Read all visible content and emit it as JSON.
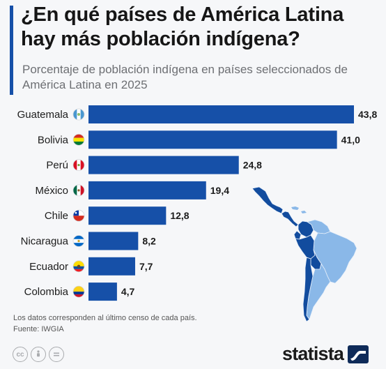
{
  "title": "¿En qué países de América Latina hay más población indígena?",
  "subtitle": "Porcentaje de población indígena en países seleccionados de América Latina en 2025",
  "footnote": "Los datos corresponden al último censo de cada país.",
  "source": "Fuente: IWGIA",
  "brand": "statista",
  "license_icons": [
    "cc-icon",
    "attribution-icon",
    "no-derivatives-icon"
  ],
  "colors": {
    "bar": "#1650a8",
    "accent": "#1650a8",
    "map_highlight": "#124c9e",
    "map_other": "#8ab8e8"
  },
  "chart_data": {
    "type": "bar",
    "orientation": "horizontal",
    "categories": [
      "Guatemala",
      "Bolivia",
      "Perú",
      "México",
      "Chile",
      "Nicaragua",
      "Ecuador",
      "Colombia"
    ],
    "values": [
      43.8,
      41.0,
      24.8,
      19.4,
      12.8,
      8.2,
      7.7,
      4.7
    ],
    "value_labels": [
      "43,8",
      "41,0",
      "24,8",
      "19,4",
      "12,8",
      "8,2",
      "7,7",
      "4,7"
    ],
    "flag_icons": [
      "guatemala-flag-icon",
      "bolivia-flag-icon",
      "peru-flag-icon",
      "mexico-flag-icon",
      "chile-flag-icon",
      "nicaragua-flag-icon",
      "ecuador-flag-icon",
      "colombia-flag-icon"
    ],
    "xlim": [
      0,
      43.8
    ],
    "grid": false,
    "legend": "none"
  }
}
